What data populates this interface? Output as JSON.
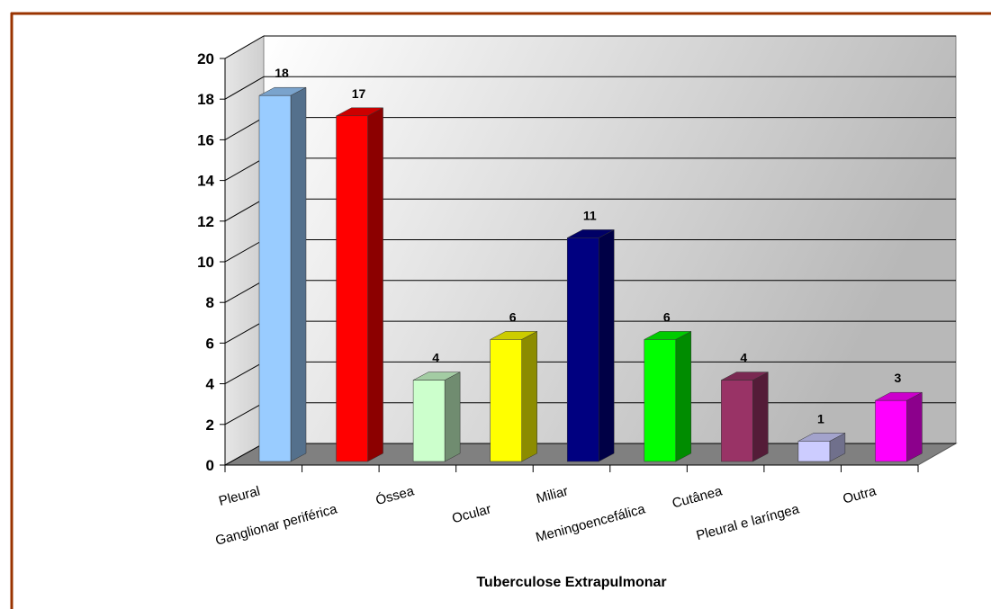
{
  "chart_data": {
    "type": "bar3d",
    "x_label": "Tuberculose Extrapulmonar",
    "categories": [
      "Pleural",
      "Ganglionar periférica",
      "Óssea",
      "Ocular",
      "Miliar",
      "Meningoencefálica",
      "Cutânea",
      "Pleural e laríngea",
      "Outra"
    ],
    "values": [
      18,
      17,
      4,
      6,
      11,
      6,
      4,
      1,
      3
    ],
    "colors": [
      "#99ccff",
      "#ff0000",
      "#ccffcc",
      "#ffff00",
      "#000080",
      "#00ff00",
      "#993366",
      "#ccccff",
      "#ff00ff"
    ],
    "ylim": [
      0,
      20
    ],
    "yticks": [
      0,
      2,
      4,
      6,
      8,
      10,
      12,
      14,
      16,
      18,
      20
    ],
    "grid": true
  }
}
